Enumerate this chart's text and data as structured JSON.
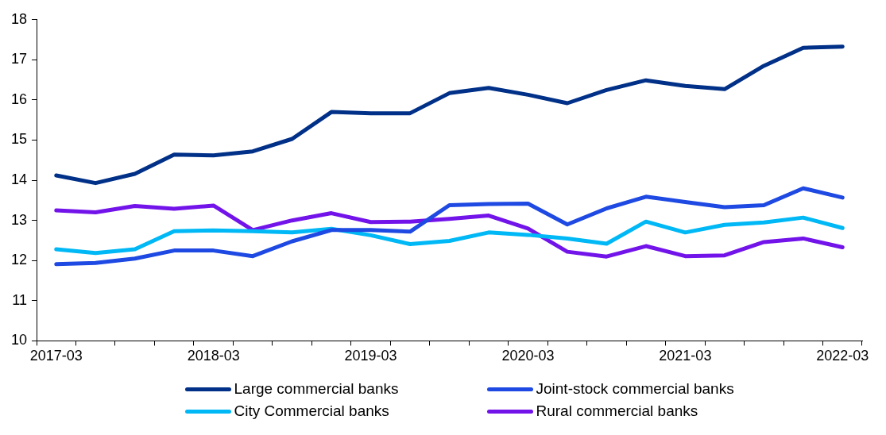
{
  "chart_data": {
    "type": "line",
    "categories": [
      "2017-03",
      null,
      null,
      null,
      "2018-03",
      null,
      null,
      null,
      "2019-03",
      null,
      null,
      null,
      "2020-03",
      null,
      null,
      null,
      "2021-03",
      null,
      null,
      null,
      "2022-03"
    ],
    "series": [
      {
        "name": "Large commercial banks",
        "color": "#003087",
        "values": [
          14.12,
          13.93,
          14.16,
          14.64,
          14.62,
          14.72,
          15.03,
          15.7,
          15.67,
          15.67,
          16.17,
          16.3,
          16.13,
          15.92,
          16.25,
          16.49,
          16.35,
          16.27,
          16.85,
          17.3,
          17.33
        ]
      },
      {
        "name": "Joint-stock commercial banks",
        "color": "#1e49e2",
        "values": [
          11.91,
          11.94,
          12.05,
          12.25,
          12.25,
          12.11,
          12.48,
          12.76,
          12.76,
          12.72,
          13.38,
          13.41,
          13.42,
          12.9,
          13.3,
          13.59,
          13.46,
          13.33,
          13.38,
          13.8,
          13.57
        ]
      },
      {
        "name": "City Commercial banks",
        "color": "#00b8f5",
        "values": [
          12.28,
          12.19,
          12.28,
          12.73,
          12.75,
          12.73,
          12.7,
          12.79,
          12.63,
          12.41,
          12.49,
          12.7,
          12.64,
          12.55,
          12.42,
          12.97,
          12.7,
          12.89,
          12.95,
          13.07,
          12.81
        ]
      },
      {
        "name": "Rural commercial banks",
        "color": "#7213ea",
        "values": [
          13.25,
          13.2,
          13.36,
          13.29,
          13.37,
          12.76,
          13.0,
          13.18,
          12.96,
          12.97,
          13.04,
          13.12,
          12.8,
          12.22,
          12.1,
          12.36,
          12.11,
          12.13,
          12.46,
          12.55,
          12.33
        ]
      }
    ],
    "ylim": [
      10,
      18
    ],
    "yticks": [
      10,
      11,
      12,
      13,
      14,
      15,
      16,
      17,
      18
    ],
    "grid": false,
    "legend": "bottom",
    "marker": "none",
    "line_style": "solid"
  }
}
